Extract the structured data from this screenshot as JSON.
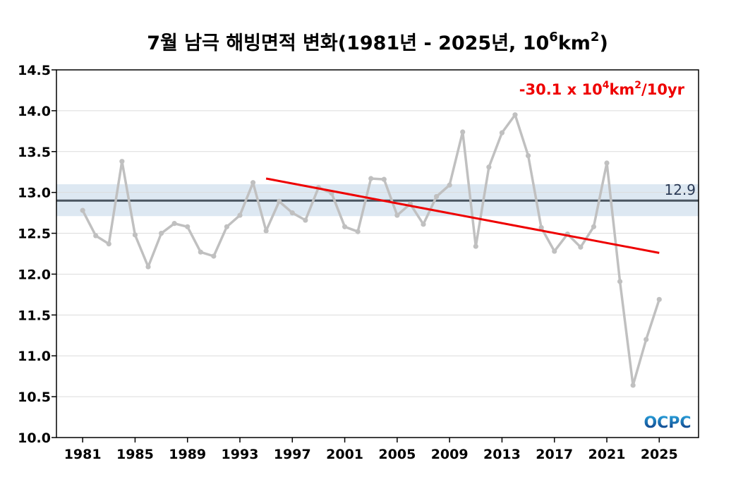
{
  "chart_data": {
    "type": "line",
    "title": {
      "main": "7월 남극 해빙면적 변화(1981년 - 2025년, 10",
      "sup1": "6",
      "mid": "km",
      "sup2": "2",
      "end": ")"
    },
    "ylim": [
      10.0,
      14.5
    ],
    "yticks": [
      "10.0",
      "10.5",
      "11.0",
      "11.5",
      "12.0",
      "12.5",
      "13.0",
      "13.5",
      "14.0",
      "14.5"
    ],
    "xticks": [
      "1981",
      "1985",
      "1989",
      "1993",
      "1997",
      "2001",
      "2005",
      "2009",
      "2013",
      "2017",
      "2021",
      "2025"
    ],
    "grid": true,
    "series": [
      {
        "color": "#c0c0c0",
        "x": [
          1981,
          1982,
          1983,
          1984,
          1985,
          1986,
          1987,
          1988,
          1989,
          1990,
          1991,
          1992,
          1993,
          1994,
          1995,
          1996,
          1997,
          1998,
          1999,
          2000,
          2001,
          2002,
          2003,
          2004,
          2005,
          2006,
          2007,
          2008,
          2009,
          2010,
          2011,
          2012,
          2013,
          2014,
          2015,
          2016,
          2017,
          2018,
          2019,
          2020,
          2021,
          2022,
          2023,
          2024,
          2025
        ],
        "values": [
          12.78,
          12.47,
          12.37,
          13.38,
          12.48,
          12.09,
          12.5,
          12.62,
          12.58,
          12.27,
          12.22,
          12.58,
          12.72,
          13.12,
          12.53,
          12.89,
          12.75,
          12.66,
          13.06,
          12.99,
          12.58,
          12.52,
          13.17,
          13.16,
          12.72,
          12.86,
          12.61,
          12.95,
          13.09,
          13.74,
          12.34,
          13.31,
          13.73,
          13.95,
          13.45,
          12.57,
          12.28,
          12.49,
          12.33,
          12.58,
          13.36,
          11.91,
          10.64,
          11.2,
          11.69
        ]
      }
    ],
    "mean": {
      "value": 12.9,
      "label": "12.9",
      "band": [
        12.71,
        13.1
      ],
      "line_color": "#4a5560",
      "band_color": "#dde8f2"
    },
    "trend": {
      "x": [
        1995,
        2025
      ],
      "y": [
        13.17,
        12.26
      ],
      "color": "#ee0000",
      "label_main": "-30.1 x 10",
      "label_sup1": "4",
      "label_mid": "km",
      "label_sup2": "2",
      "label_end": "/10yr"
    },
    "logo": {
      "text": "OCPC",
      "color_top": "#2aa7e0",
      "color_bottom": "#0b2f7a"
    }
  }
}
